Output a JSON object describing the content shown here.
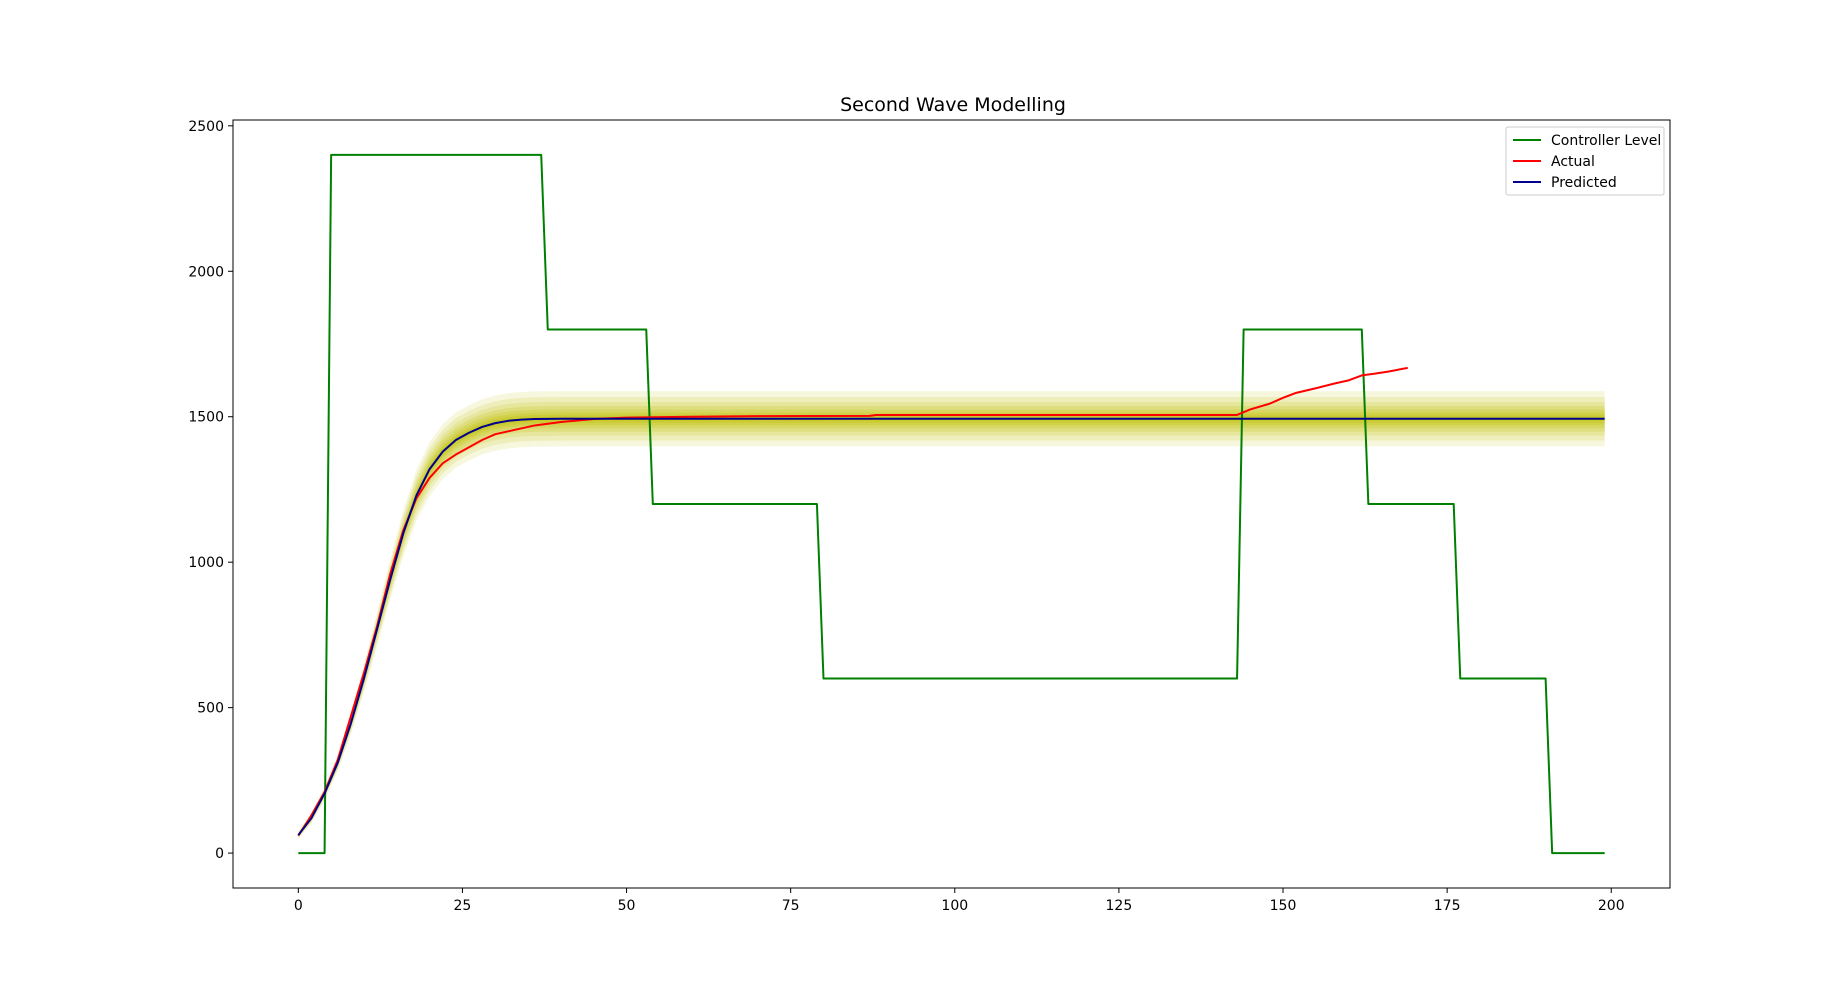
{
  "chart_data": {
    "type": "line",
    "title": "Second Wave Modelling",
    "xlabel": "",
    "ylabel": "",
    "xlim": [
      -9.95,
      208.95
    ],
    "ylim": [
      -120,
      2520
    ],
    "x_ticks": [
      0,
      25,
      50,
      75,
      100,
      125,
      150,
      175,
      200
    ],
    "y_ticks": [
      0,
      500,
      1000,
      1500,
      2000,
      2500
    ],
    "legend_position": "top-right",
    "grid": false,
    "band_color": "#bfbf00",
    "series": [
      {
        "name": "Controller Level",
        "color": "#008000",
        "points": [
          [
            0,
            0
          ],
          [
            4,
            0
          ],
          [
            5,
            2400
          ],
          [
            37,
            2400
          ],
          [
            38,
            1800
          ],
          [
            53,
            1800
          ],
          [
            54,
            1200
          ],
          [
            79,
            1200
          ],
          [
            80,
            600
          ],
          [
            143,
            600
          ],
          [
            144,
            1800
          ],
          [
            162,
            1800
          ],
          [
            163,
            1200
          ],
          [
            176,
            1200
          ],
          [
            177,
            600
          ],
          [
            190,
            600
          ],
          [
            191,
            0
          ],
          [
            199,
            0
          ]
        ]
      },
      {
        "name": "Actual",
        "color": "#ff0000",
        "points": [
          [
            0,
            60
          ],
          [
            2,
            130
          ],
          [
            4,
            210
          ],
          [
            6,
            320
          ],
          [
            8,
            470
          ],
          [
            10,
            620
          ],
          [
            12,
            780
          ],
          [
            14,
            960
          ],
          [
            16,
            1110
          ],
          [
            18,
            1220
          ],
          [
            20,
            1290
          ],
          [
            22,
            1340
          ],
          [
            24,
            1370
          ],
          [
            26,
            1395
          ],
          [
            28,
            1420
          ],
          [
            30,
            1440
          ],
          [
            33,
            1455
          ],
          [
            36,
            1470
          ],
          [
            40,
            1482
          ],
          [
            45,
            1492
          ],
          [
            50,
            1497
          ],
          [
            60,
            1500
          ],
          [
            70,
            1502
          ],
          [
            87,
            1503
          ],
          [
            88,
            1506
          ],
          [
            100,
            1506
          ],
          [
            120,
            1506
          ],
          [
            143,
            1506
          ],
          [
            145,
            1525
          ],
          [
            148,
            1545
          ],
          [
            150,
            1565
          ],
          [
            152,
            1582
          ],
          [
            155,
            1598
          ],
          [
            158,
            1615
          ],
          [
            160,
            1625
          ],
          [
            162,
            1642
          ],
          [
            164,
            1648
          ],
          [
            166,
            1655
          ],
          [
            169,
            1668
          ]
        ]
      },
      {
        "name": "Predicted",
        "color": "#00008b",
        "points": [
          [
            0,
            62
          ],
          [
            2,
            120
          ],
          [
            4,
            205
          ],
          [
            6,
            310
          ],
          [
            8,
            445
          ],
          [
            10,
            600
          ],
          [
            12,
            770
          ],
          [
            14,
            940
          ],
          [
            16,
            1100
          ],
          [
            18,
            1230
          ],
          [
            20,
            1320
          ],
          [
            22,
            1380
          ],
          [
            24,
            1420
          ],
          [
            26,
            1445
          ],
          [
            28,
            1465
          ],
          [
            30,
            1478
          ],
          [
            32,
            1486
          ],
          [
            34,
            1490
          ],
          [
            36,
            1492
          ],
          [
            40,
            1493
          ],
          [
            60,
            1493
          ],
          [
            100,
            1493
          ],
          [
            150,
            1493
          ],
          [
            199,
            1493
          ]
        ]
      }
    ]
  }
}
